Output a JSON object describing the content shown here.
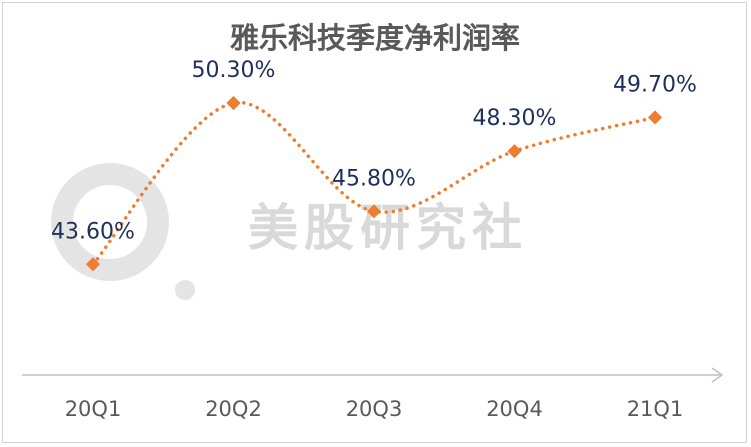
{
  "chart_data": {
    "type": "line",
    "title": "雅乐科技季度净利润率",
    "categories": [
      "20Q1",
      "20Q2",
      "20Q3",
      "20Q4",
      "21Q1"
    ],
    "series": [
      {
        "values": [
          43.6,
          50.3,
          45.8,
          48.3,
          49.7
        ],
        "labels": [
          "43.60%",
          "50.30%",
          "45.80%",
          "48.30%",
          "49.70%"
        ]
      }
    ],
    "xlabel": "",
    "ylabel": "",
    "ylim": [
      39,
      53
    ],
    "grid": false,
    "legend": "none",
    "line_style": "dotted-smooth",
    "marker": "diamond",
    "colors": {
      "line": "#ed7d31",
      "label": "#1f2f5c",
      "axis": "#bfbfbf",
      "text": "#595959"
    }
  },
  "watermark": {
    "text": "美股研究社",
    "icon": "magnifier-logo-icon"
  }
}
